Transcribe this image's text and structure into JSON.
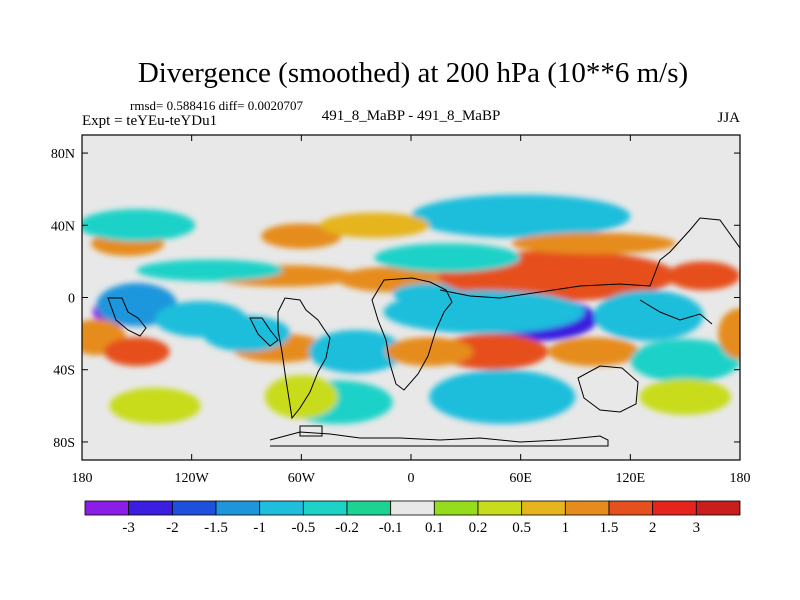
{
  "chart_data": {
    "type": "heatmap",
    "title": "Divergence (smoothed) at 200 hPa (10**6 m/s)",
    "stats_text": "rmsd= 0.588416 diff= 0.0020707",
    "left_label": "Expt = teYEu-teYDu1",
    "center_label": "491_8_MaBP - 491_8_MaBP",
    "right_label": "JJA",
    "x_ticks": [
      {
        "value": -180,
        "label": "180"
      },
      {
        "value": -120,
        "label": "120W"
      },
      {
        "value": -60,
        "label": "60W"
      },
      {
        "value": 0,
        "label": "0"
      },
      {
        "value": 60,
        "label": "60E"
      },
      {
        "value": 120,
        "label": "120E"
      },
      {
        "value": 180,
        "label": "180"
      }
    ],
    "y_ticks": [
      {
        "value": 80,
        "label": "80N"
      },
      {
        "value": 40,
        "label": "40N"
      },
      {
        "value": 0,
        "label": "0"
      },
      {
        "value": -40,
        "label": "40S"
      },
      {
        "value": -80,
        "label": "80S"
      }
    ],
    "xlim": [
      -180,
      180
    ],
    "ylim": [
      -90,
      90
    ],
    "colorbar": {
      "levels": [
        "-3",
        "-2",
        "-1.5",
        "-1",
        "-0.5",
        "-0.2",
        "-0.1",
        "0.1",
        "0.2",
        "0.5",
        "1",
        "1.5",
        "2",
        "3"
      ],
      "colors": [
        "#8a1ee6",
        "#3b1ee0",
        "#1f50dc",
        "#1f96dc",
        "#1ebedc",
        "#1fd2c8",
        "#1ed292",
        "#e8e8e8",
        "#96dc1e",
        "#c8dc1e",
        "#e6b41e",
        "#e68c1e",
        "#e6501e",
        "#e6241e",
        "#c81e1e"
      ]
    },
    "anomalies": [
      {
        "lon": -162,
        "lat": -8,
        "value": -3.2,
        "rx": 12,
        "ry": 8
      },
      {
        "lon": -150,
        "lat": -4,
        "value": -1.5,
        "rx": 22,
        "ry": 12
      },
      {
        "lon": -172,
        "lat": -22,
        "value": 1.2,
        "rx": 16,
        "ry": 10
      },
      {
        "lon": -150,
        "lat": -30,
        "value": 1.5,
        "rx": 18,
        "ry": 8
      },
      {
        "lon": -155,
        "lat": 30,
        "value": 1.4,
        "rx": 20,
        "ry": 7
      },
      {
        "lon": -150,
        "lat": 40,
        "value": -0.5,
        "rx": 32,
        "ry": 9
      },
      {
        "lon": -60,
        "lat": 34,
        "value": 1.2,
        "rx": 22,
        "ry": 7
      },
      {
        "lon": -70,
        "lat": 12,
        "value": 1.1,
        "rx": 40,
        "ry": 6
      },
      {
        "lon": -110,
        "lat": 15,
        "value": -0.5,
        "rx": 40,
        "ry": 6
      },
      {
        "lon": -115,
        "lat": -12,
        "value": -0.8,
        "rx": 25,
        "ry": 10
      },
      {
        "lon": -72,
        "lat": -28,
        "value": 1.0,
        "rx": 26,
        "ry": 8
      },
      {
        "lon": -90,
        "lat": -20,
        "value": -0.6,
        "rx": 24,
        "ry": 10
      },
      {
        "lon": -30,
        "lat": -30,
        "value": -0.8,
        "rx": 26,
        "ry": 12
      },
      {
        "lon": -10,
        "lat": 10,
        "value": 1.2,
        "rx": 30,
        "ry": 7
      },
      {
        "lon": 10,
        "lat": 2,
        "value": -1.0,
        "rx": 20,
        "ry": 6
      },
      {
        "lon": 75,
        "lat": 16,
        "value": 2.6,
        "rx": 36,
        "ry": 9
      },
      {
        "lon": 80,
        "lat": 12,
        "value": 1.6,
        "rx": 65,
        "ry": 14
      },
      {
        "lon": 160,
        "lat": 12,
        "value": 1.8,
        "rx": 20,
        "ry": 8
      },
      {
        "lon": 70,
        "lat": -12,
        "value": -2.2,
        "rx": 32,
        "ry": 12
      },
      {
        "lon": 40,
        "lat": -8,
        "value": -0.9,
        "rx": 55,
        "ry": 12
      },
      {
        "lon": 130,
        "lat": -10,
        "value": -0.8,
        "rx": 30,
        "ry": 14
      },
      {
        "lon": 45,
        "lat": -30,
        "value": 1.6,
        "rx": 30,
        "ry": 10
      },
      {
        "lon": 100,
        "lat": -30,
        "value": 1.0,
        "rx": 25,
        "ry": 8
      },
      {
        "lon": 10,
        "lat": -30,
        "value": 1.0,
        "rx": 24,
        "ry": 8
      },
      {
        "lon": 60,
        "lat": 45,
        "value": -0.6,
        "rx": 60,
        "ry": 12
      },
      {
        "lon": 100,
        "lat": 30,
        "value": 1.0,
        "rx": 45,
        "ry": 6
      },
      {
        "lon": -20,
        "lat": 40,
        "value": 0.6,
        "rx": 30,
        "ry": 7
      },
      {
        "lon": 20,
        "lat": 22,
        "value": -0.5,
        "rx": 40,
        "ry": 8
      },
      {
        "lon": -40,
        "lat": -58,
        "value": -0.5,
        "rx": 30,
        "ry": 12
      },
      {
        "lon": 50,
        "lat": -55,
        "value": -0.6,
        "rx": 40,
        "ry": 15
      },
      {
        "lon": 150,
        "lat": -35,
        "value": -0.5,
        "rx": 30,
        "ry": 12
      },
      {
        "lon": 150,
        "lat": -55,
        "value": 0.3,
        "rx": 25,
        "ry": 10
      },
      {
        "lon": -60,
        "lat": -55,
        "value": 0.3,
        "rx": 20,
        "ry": 12
      },
      {
        "lon": -140,
        "lat": -60,
        "value": 0.4,
        "rx": 25,
        "ry": 10
      },
      {
        "lon": 180,
        "lat": -20,
        "value": 1.0,
        "rx": 12,
        "ry": 14
      }
    ]
  }
}
